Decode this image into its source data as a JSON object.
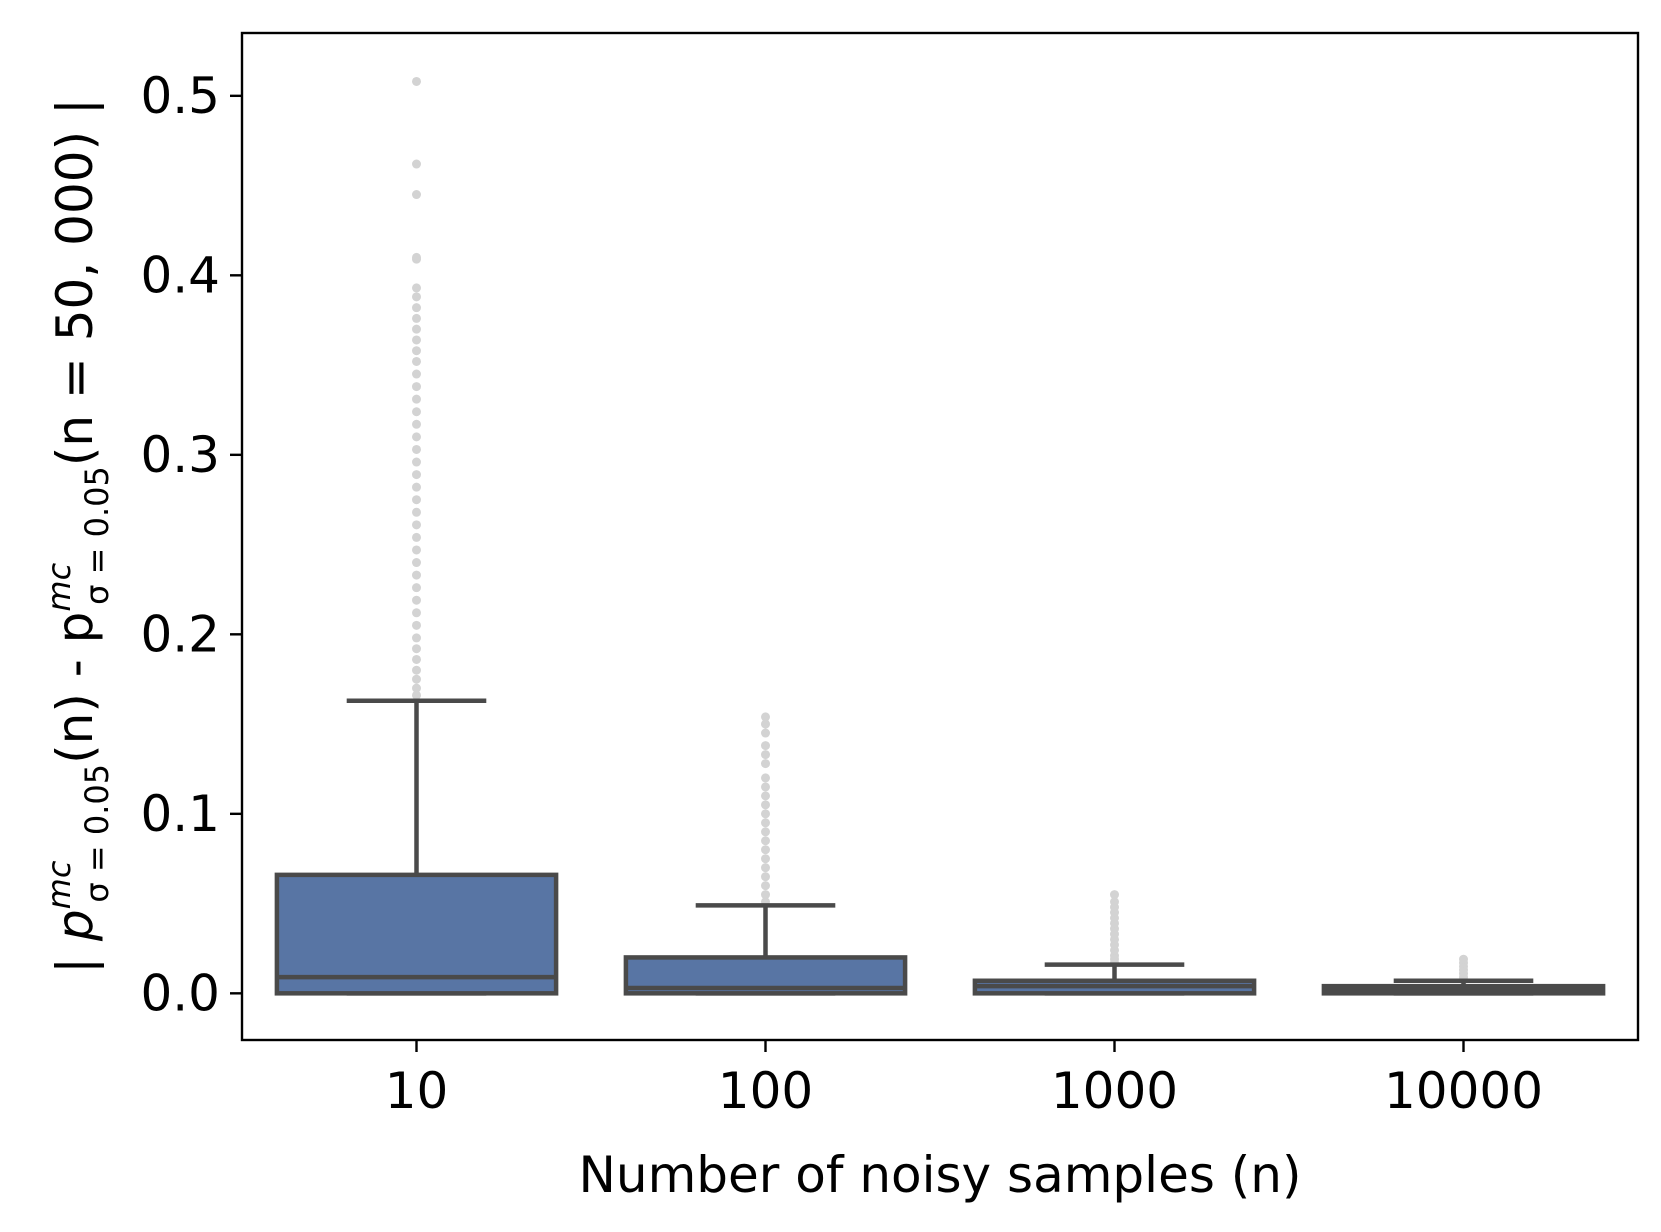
{
  "chart_data": {
    "type": "box",
    "xlabel": "Number of noisy samples (n)",
    "ylabel": {
      "open": "| p",
      "sup1": "mc",
      "sub1": "σ = 0.05",
      "mid": "(n) - p",
      "sup2": "mc",
      "sub2": "σ = 0.05",
      "close": "(n = 50, 000) |"
    },
    "categories": [
      "10",
      "100",
      "1000",
      "10000"
    ],
    "ylim": [
      -0.026,
      0.535
    ],
    "yticks": [
      0.0,
      0.1,
      0.2,
      0.3,
      0.4,
      0.5
    ],
    "ytick_labels": [
      "0.0",
      "0.1",
      "0.2",
      "0.3",
      "0.4",
      "0.5"
    ],
    "grid": false,
    "legend": "none",
    "colors": {
      "box_fill": "#5875a4",
      "box_edge": "#4a4a4a",
      "flier": "#d3d3d3"
    },
    "boxes": [
      {
        "category": "10",
        "min": 0.0,
        "q1": 0.0,
        "median": 0.009,
        "q3": 0.066,
        "whisker_high": 0.163,
        "outliers": [
          0.166,
          0.17,
          0.175,
          0.18,
          0.186,
          0.192,
          0.198,
          0.205,
          0.212,
          0.219,
          0.226,
          0.233,
          0.24,
          0.247,
          0.254,
          0.261,
          0.268,
          0.275,
          0.282,
          0.289,
          0.296,
          0.303,
          0.31,
          0.317,
          0.324,
          0.331,
          0.338,
          0.345,
          0.352,
          0.358,
          0.364,
          0.37,
          0.376,
          0.382,
          0.388,
          0.393,
          0.409,
          0.41,
          0.445,
          0.462,
          0.508
        ]
      },
      {
        "category": "100",
        "min": 0.0,
        "q1": 0.0,
        "median": 0.003,
        "q3": 0.02,
        "whisker_high": 0.049,
        "outliers": [
          0.051,
          0.055,
          0.06,
          0.065,
          0.07,
          0.075,
          0.08,
          0.085,
          0.09,
          0.095,
          0.1,
          0.105,
          0.11,
          0.115,
          0.12,
          0.128,
          0.133,
          0.138,
          0.145,
          0.15,
          0.154
        ]
      },
      {
        "category": "1000",
        "min": 0.0,
        "q1": 0.0,
        "median": 0.004,
        "q3": 0.007,
        "whisker_high": 0.016,
        "outliers": [
          0.017,
          0.019,
          0.021,
          0.024,
          0.027,
          0.03,
          0.033,
          0.036,
          0.039,
          0.042,
          0.045,
          0.048,
          0.051,
          0.055
        ]
      },
      {
        "category": "10000",
        "min": 0.0,
        "q1": 0.0,
        "median": 0.002,
        "q3": 0.004,
        "whisker_high": 0.007,
        "outliers": [
          0.0075,
          0.009,
          0.011,
          0.013,
          0.015,
          0.017,
          0.019
        ]
      }
    ]
  }
}
